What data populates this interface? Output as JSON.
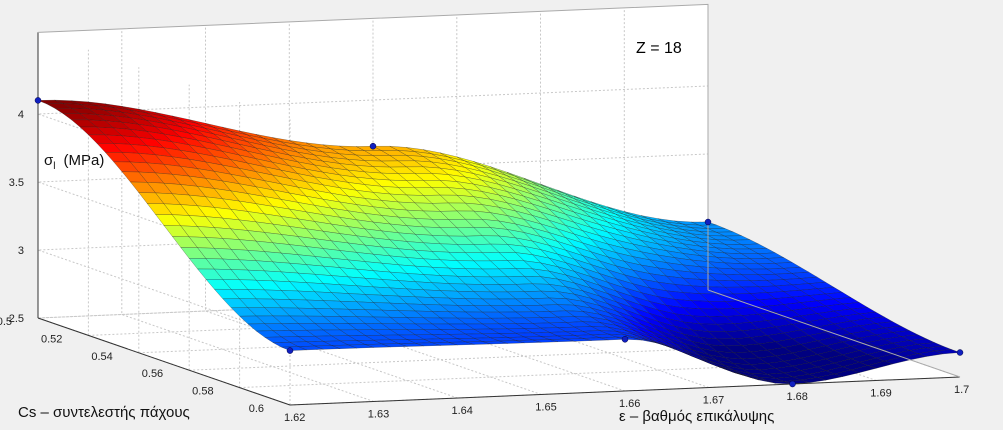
{
  "chart_data": {
    "type": "surface",
    "annotation": "Z = 18",
    "zlabel": "σ",
    "zlabel_sub": "l",
    "zlabel_unit": "(MPa)",
    "xlabel": "ε – βαθμός επικάλυψης",
    "ylabel": "Cs – συντελεστής πάχους",
    "x_ticks": [
      "1.62",
      "1.63",
      "1.64",
      "1.65",
      "1.66",
      "1.67",
      "1.68",
      "1.69",
      "1.7"
    ],
    "y_ticks": [
      "0.5",
      "0.52",
      "0.54",
      "0.56",
      "0.58",
      "0.6"
    ],
    "z_ticks": [
      "2.5",
      "3",
      "3.5",
      "4"
    ],
    "xlim": [
      1.62,
      1.7
    ],
    "ylim": [
      0.5,
      0.6
    ],
    "zlim": [
      2.5,
      4.0
    ],
    "grid": true,
    "colormap": "jet",
    "points": [
      {
        "x": 1.62,
        "y": 0.5,
        "z": 4.1
      },
      {
        "x": 1.66,
        "y": 0.5,
        "z": 3.66
      },
      {
        "x": 1.7,
        "y": 0.5,
        "z": 3.0
      },
      {
        "x": 1.62,
        "y": 0.6,
        "z": 2.9
      },
      {
        "x": 1.66,
        "y": 0.6,
        "z": 2.88
      },
      {
        "x": 1.7,
        "y": 0.6,
        "z": 2.68
      },
      {
        "x": 1.68,
        "y": 0.6,
        "z": 2.5
      }
    ]
  }
}
